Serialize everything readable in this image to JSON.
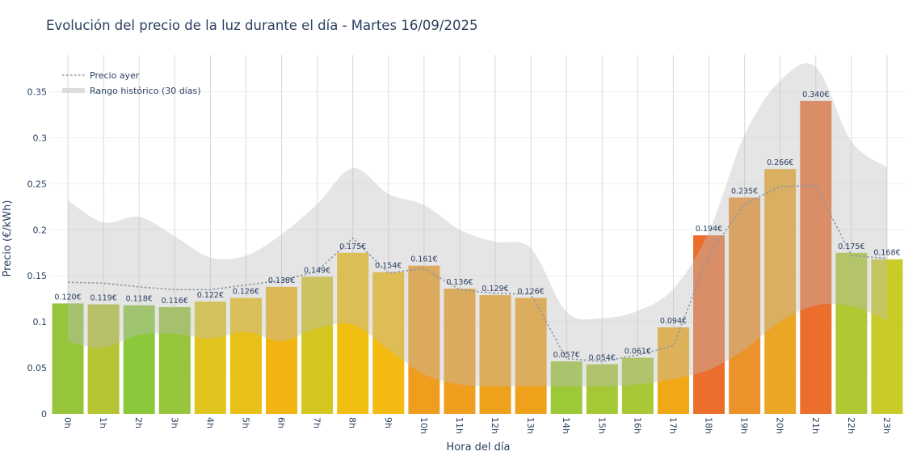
{
  "chart_data": {
    "type": "bar",
    "title": "Evolución del precio de la luz durante el día - Martes 16/09/2025",
    "xlabel": "Hora del día",
    "ylabel": "Precio (€/kWh)",
    "ylim": [
      0,
      0.39
    ],
    "yticks": [
      "0",
      "0.05",
      "0.1",
      "0.15",
      "0.2",
      "0.25",
      "0.3",
      "0.35"
    ],
    "ytick_values": [
      0,
      0.05,
      0.1,
      0.15,
      0.2,
      0.25,
      0.3,
      0.35
    ],
    "grid": true,
    "legend_position": "top-left",
    "categories": [
      "0h",
      "1h",
      "2h",
      "3h",
      "4h",
      "5h",
      "6h",
      "7h",
      "8h",
      "9h",
      "10h",
      "11h",
      "12h",
      "13h",
      "14h",
      "15h",
      "16h",
      "17h",
      "18h",
      "19h",
      "20h",
      "21h",
      "22h",
      "23h"
    ],
    "series": [
      {
        "name": "",
        "values": [
          0.12,
          0.119,
          0.118,
          0.116,
          0.122,
          0.126,
          0.138,
          0.149,
          0.175,
          0.154,
          0.161,
          0.136,
          0.129,
          0.126,
          0.057,
          0.054,
          0.061,
          0.094,
          0.194,
          0.235,
          0.266,
          0.34,
          0.175,
          0.168
        ],
        "data_labels": [
          "0.120€",
          "0.119€",
          "0.118€",
          "0.116€",
          "0.122€",
          "0.126€",
          "0.138€",
          "0.149€",
          "0.175€",
          "0.154€",
          "0.161€",
          "0.136€",
          "0.129€",
          "0.126€",
          "0.057€",
          "0.054€",
          "0.061€",
          "0.094€",
          "0.194€",
          "0.235€",
          "0.266€",
          "0.340€",
          "0.175€",
          "0.168€"
        ],
        "colors": [
          "#96c43a",
          "#b4c432",
          "#8cc83c",
          "#96c43a",
          "#e0c51e",
          "#e9c018",
          "#f2b411",
          "#d4c61e",
          "#f0bf12",
          "#f3bb11",
          "#ef9d1d",
          "#ef9f1d",
          "#eea21b",
          "#eea21b",
          "#9dc838",
          "#a5c836",
          "#a8c835",
          "#f0a818",
          "#eb6e2d",
          "#eb922a",
          "#eba626",
          "#eb6e2d",
          "#aec931",
          "#c9cb28"
        ]
      },
      {
        "name": "Precio ayer",
        "color": "#8a96a8",
        "values": [
          0.143,
          0.142,
          0.138,
          0.135,
          0.135,
          0.14,
          0.145,
          0.155,
          0.191,
          0.153,
          0.158,
          0.135,
          0.131,
          0.13,
          0.06,
          0.057,
          0.064,
          0.074,
          0.173,
          0.228,
          0.247,
          0.248,
          0.172,
          0.169
        ]
      },
      {
        "name": "Rango histórico (30 días)",
        "type": "area",
        "color": "#e5e5e5",
        "upper": [
          0.232,
          0.208,
          0.214,
          0.193,
          0.17,
          0.172,
          0.195,
          0.228,
          0.267,
          0.239,
          0.227,
          0.2,
          0.187,
          0.18,
          0.111,
          0.104,
          0.112,
          0.136,
          0.198,
          0.303,
          0.362,
          0.377,
          0.296,
          0.268
        ],
        "lower": [
          0.078,
          0.072,
          0.086,
          0.087,
          0.082,
          0.089,
          0.079,
          0.093,
          0.097,
          0.07,
          0.043,
          0.032,
          0.03,
          0.03,
          0.03,
          0.03,
          0.032,
          0.038,
          0.048,
          0.07,
          0.1,
          0.118,
          0.117,
          0.102
        ]
      }
    ]
  }
}
